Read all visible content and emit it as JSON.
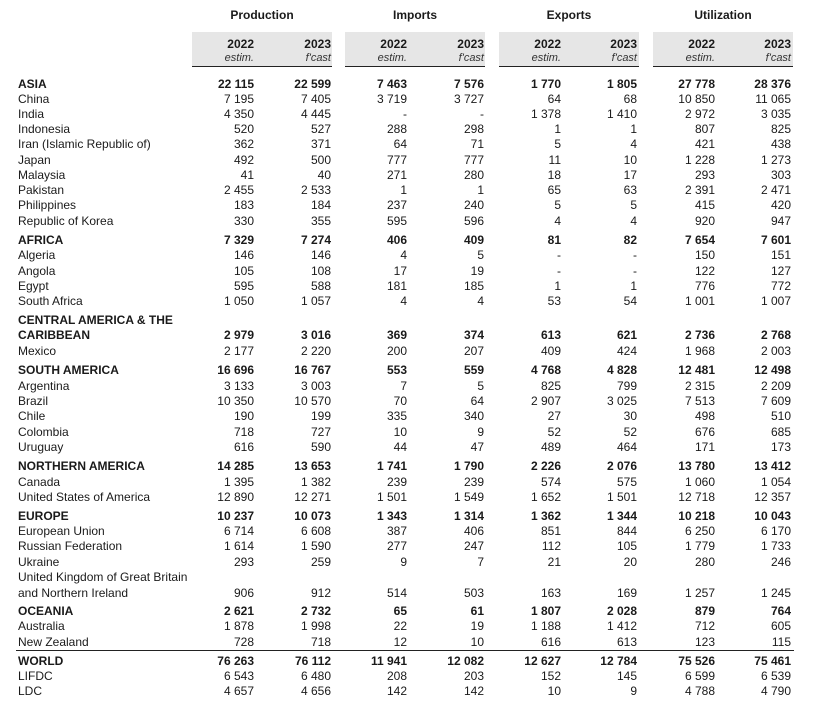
{
  "groups": [
    {
      "title": "Production",
      "year1": "2022",
      "year2": "2023",
      "qual1": "estim.",
      "qual2": "f'cast"
    },
    {
      "title": "Imports",
      "year1": "2022",
      "year2": "2023",
      "qual1": "estim.",
      "qual2": "f'cast"
    },
    {
      "title": "Exports",
      "year1": "2022",
      "year2": "2023",
      "qual1": "estim.",
      "qual2": "f'cast"
    },
    {
      "title": "Utilization",
      "year1": "2022",
      "year2": "2023",
      "qual1": "estim.",
      "qual2": "f'cast"
    }
  ],
  "rows": [
    {
      "label": "ASIA",
      "bold": true,
      "values": [
        "22 115",
        "22 599",
        "7 463",
        "7 576",
        "1 770",
        "1 805",
        "27 778",
        "28 376"
      ]
    },
    {
      "label": "China",
      "values": [
        "7 195",
        "7 405",
        "3 719",
        "3 727",
        "64",
        "68",
        "10 850",
        "11 065"
      ]
    },
    {
      "label": "India",
      "values": [
        "4 350",
        "4 445",
        "-",
        "-",
        "1 378",
        "1 410",
        "2 972",
        "3 035"
      ]
    },
    {
      "label": "Indonesia",
      "values": [
        "520",
        "527",
        "288",
        "298",
        "1",
        "1",
        "807",
        "825"
      ]
    },
    {
      "label": "Iran (Islamic Republic of)",
      "values": [
        "362",
        "371",
        "64",
        "71",
        "5",
        "4",
        "421",
        "438"
      ]
    },
    {
      "label": "Japan",
      "values": [
        "492",
        "500",
        "777",
        "777",
        "11",
        "10",
        "1 228",
        "1 273"
      ]
    },
    {
      "label": "Malaysia",
      "values": [
        "41",
        "40",
        "271",
        "280",
        "18",
        "17",
        "293",
        "303"
      ]
    },
    {
      "label": "Pakistan",
      "values": [
        "2 455",
        "2 533",
        "1",
        "1",
        "65",
        "63",
        "2 391",
        "2 471"
      ]
    },
    {
      "label": "Philippines",
      "values": [
        "183",
        "184",
        "237",
        "240",
        "5",
        "5",
        "415",
        "420"
      ]
    },
    {
      "label": "Republic of Korea",
      "values": [
        "330",
        "355",
        "595",
        "596",
        "4",
        "4",
        "920",
        "947"
      ]
    },
    {
      "label": "AFRICA",
      "bold": true,
      "values": [
        "7 329",
        "7 274",
        "406",
        "409",
        "81",
        "82",
        "7 654",
        "7 601"
      ]
    },
    {
      "label": "Algeria",
      "values": [
        "146",
        "146",
        "4",
        "5",
        "-",
        "-",
        "150",
        "151"
      ]
    },
    {
      "label": "Angola",
      "values": [
        "105",
        "108",
        "17",
        "19",
        "-",
        "-",
        "122",
        "127"
      ]
    },
    {
      "label": "Egypt",
      "values": [
        "595",
        "588",
        "181",
        "185",
        "1",
        "1",
        "776",
        "772"
      ]
    },
    {
      "label": "South Africa",
      "values": [
        "1 050",
        "1 057",
        "4",
        "4",
        "53",
        "54",
        "1 001",
        "1 007"
      ]
    },
    {
      "label": "CENTRAL AMERICA & THE",
      "bold": true,
      "values": [
        "",
        "",
        "",
        "",
        "",
        "",
        "",
        ""
      ]
    },
    {
      "label": "CARIBBEAN",
      "bold": true,
      "values": [
        "2 979",
        "3 016",
        "369",
        "374",
        "613",
        "621",
        "2 736",
        "2 768"
      ]
    },
    {
      "label": "Mexico",
      "values": [
        "2 177",
        "2 220",
        "200",
        "207",
        "409",
        "424",
        "1 968",
        "2 003"
      ]
    },
    {
      "label": "SOUTH AMERICA",
      "bold": true,
      "values": [
        "16 696",
        "16 767",
        "553",
        "559",
        "4 768",
        "4 828",
        "12 481",
        "12 498"
      ]
    },
    {
      "label": "Argentina",
      "values": [
        "3 133",
        "3 003",
        "7",
        "5",
        "825",
        "799",
        "2 315",
        "2 209"
      ]
    },
    {
      "label": "Brazil",
      "values": [
        "10 350",
        "10 570",
        "70",
        "64",
        "2 907",
        "3 025",
        "7 513",
        "7 609"
      ]
    },
    {
      "label": "Chile",
      "values": [
        "190",
        "199",
        "335",
        "340",
        "27",
        "30",
        "498",
        "510"
      ]
    },
    {
      "label": "Colombia",
      "values": [
        "718",
        "727",
        "10",
        "9",
        "52",
        "52",
        "676",
        "685"
      ]
    },
    {
      "label": "Uruguay",
      "values": [
        "616",
        "590",
        "44",
        "47",
        "489",
        "464",
        "171",
        "173"
      ]
    },
    {
      "label": "NORTHERN AMERICA",
      "bold": true,
      "values": [
        "14 285",
        "13 653",
        "1 741",
        "1 790",
        "2 226",
        "2 076",
        "13 780",
        "13 412"
      ]
    },
    {
      "label": "Canada",
      "values": [
        "1 395",
        "1 382",
        "239",
        "239",
        "574",
        "575",
        "1 060",
        "1 054"
      ]
    },
    {
      "label": "United States of America",
      "values": [
        "12 890",
        "12 271",
        "1 501",
        "1 549",
        "1 652",
        "1 501",
        "12 718",
        "12 357"
      ]
    },
    {
      "label": "EUROPE",
      "bold": true,
      "values": [
        "10 237",
        "10 073",
        "1 343",
        "1 314",
        "1 362",
        "1 344",
        "10 218",
        "10 043"
      ]
    },
    {
      "label": "European Union",
      "values": [
        "6 714",
        "6 608",
        "387",
        "406",
        "851",
        "844",
        "6 250",
        "6 170"
      ]
    },
    {
      "label": "Russian Federation",
      "values": [
        "1 614",
        "1 590",
        "277",
        "247",
        "112",
        "105",
        "1 779",
        "1 733"
      ]
    },
    {
      "label": "Ukraine",
      "values": [
        "293",
        "259",
        "9",
        "7",
        "21",
        "20",
        "280",
        "246"
      ]
    },
    {
      "label": "United Kingdom of Great Britain",
      "values": [
        "",
        "",
        "",
        "",
        "",
        "",
        "",
        ""
      ]
    },
    {
      "label": "and Northern Ireland",
      "values": [
        "906",
        "912",
        "514",
        "503",
        "163",
        "169",
        "1 257",
        "1 245"
      ]
    },
    {
      "label": "OCEANIA",
      "bold": true,
      "values": [
        "2 621",
        "2 732",
        "65",
        "61",
        "1 807",
        "2 028",
        "879",
        "764"
      ]
    },
    {
      "label": "Australia",
      "values": [
        "1 878",
        "1 998",
        "22",
        "19",
        "1 188",
        "1 412",
        "712",
        "605"
      ]
    },
    {
      "label": "New Zealand",
      "values": [
        "728",
        "718",
        "12",
        "10",
        "616",
        "613",
        "123",
        "115"
      ]
    },
    {
      "label": "WORLD",
      "bold": true,
      "values": [
        "76 263",
        "76 112",
        "11 941",
        "12 082",
        "12 627",
        "12 784",
        "75 526",
        "75 461"
      ]
    },
    {
      "label": "LIFDC",
      "values": [
        "6 543",
        "6 480",
        "208",
        "203",
        "152",
        "145",
        "6 599",
        "6 539"
      ]
    },
    {
      "label": "LDC",
      "values": [
        "4 657",
        "4 656",
        "142",
        "142",
        "10",
        "9",
        "4 788",
        "4 790"
      ]
    }
  ]
}
